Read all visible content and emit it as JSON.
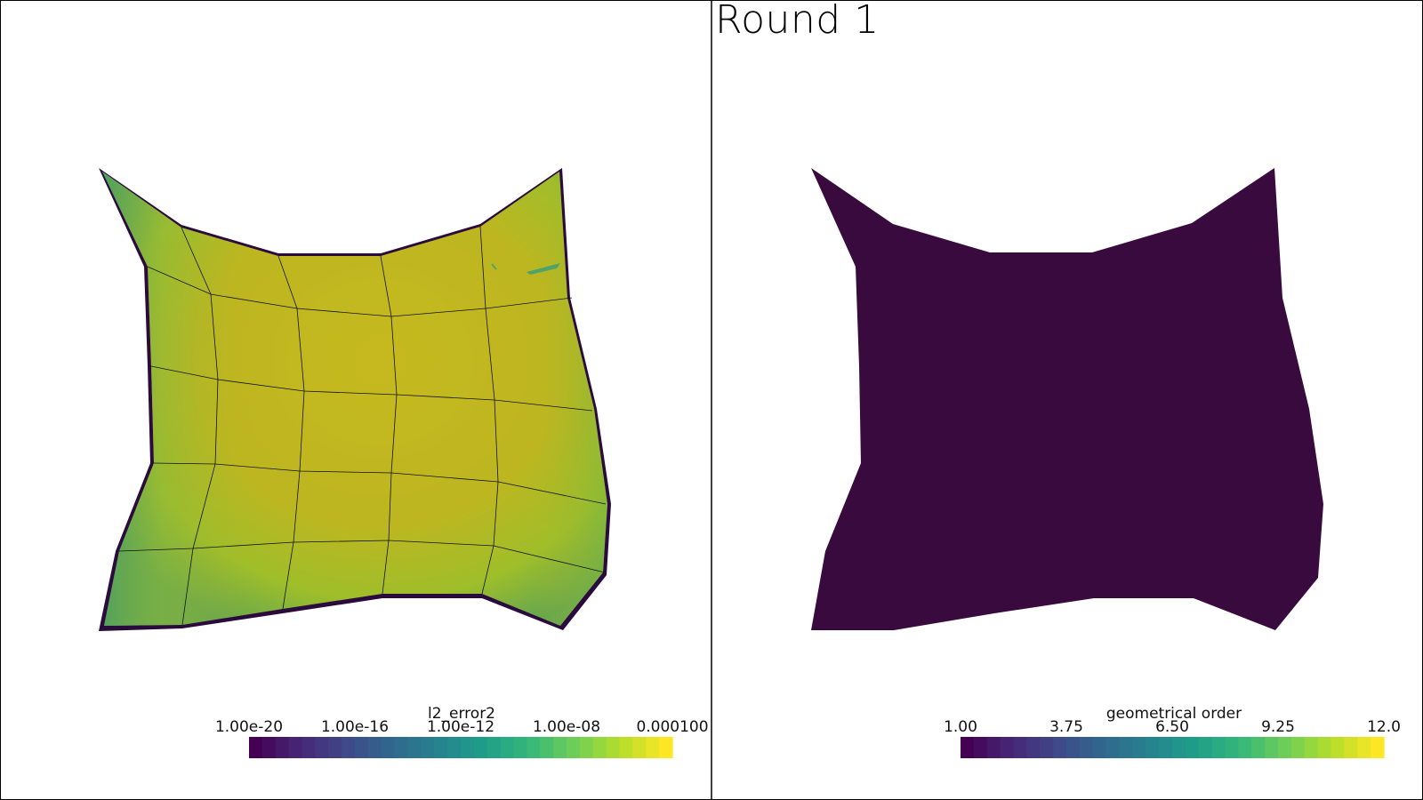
{
  "title": "Round 1",
  "left_view": {
    "colorbar": {
      "title": "l2_error2",
      "ticks": [
        "1.00e-20",
        "1.00e-16",
        "1.00e-12",
        "1.00e-08",
        "0.000100"
      ],
      "colormap": "viridis"
    }
  },
  "right_view": {
    "colorbar": {
      "title": "geometrical order",
      "ticks": [
        "1.00",
        "3.75",
        "6.50",
        "9.25",
        "12.0"
      ],
      "colormap": "viridis"
    },
    "fill_color": "#380a3d"
  },
  "colors": {
    "viridis": [
      "#440154",
      "#482878",
      "#3e4989",
      "#31688e",
      "#26828e",
      "#1f9e89",
      "#35b779",
      "#6ece58",
      "#b5de2b",
      "#fde725"
    ],
    "mesh_fill": "#b9b321",
    "mesh_edge": "#2b0b3e",
    "border": "#000000"
  }
}
